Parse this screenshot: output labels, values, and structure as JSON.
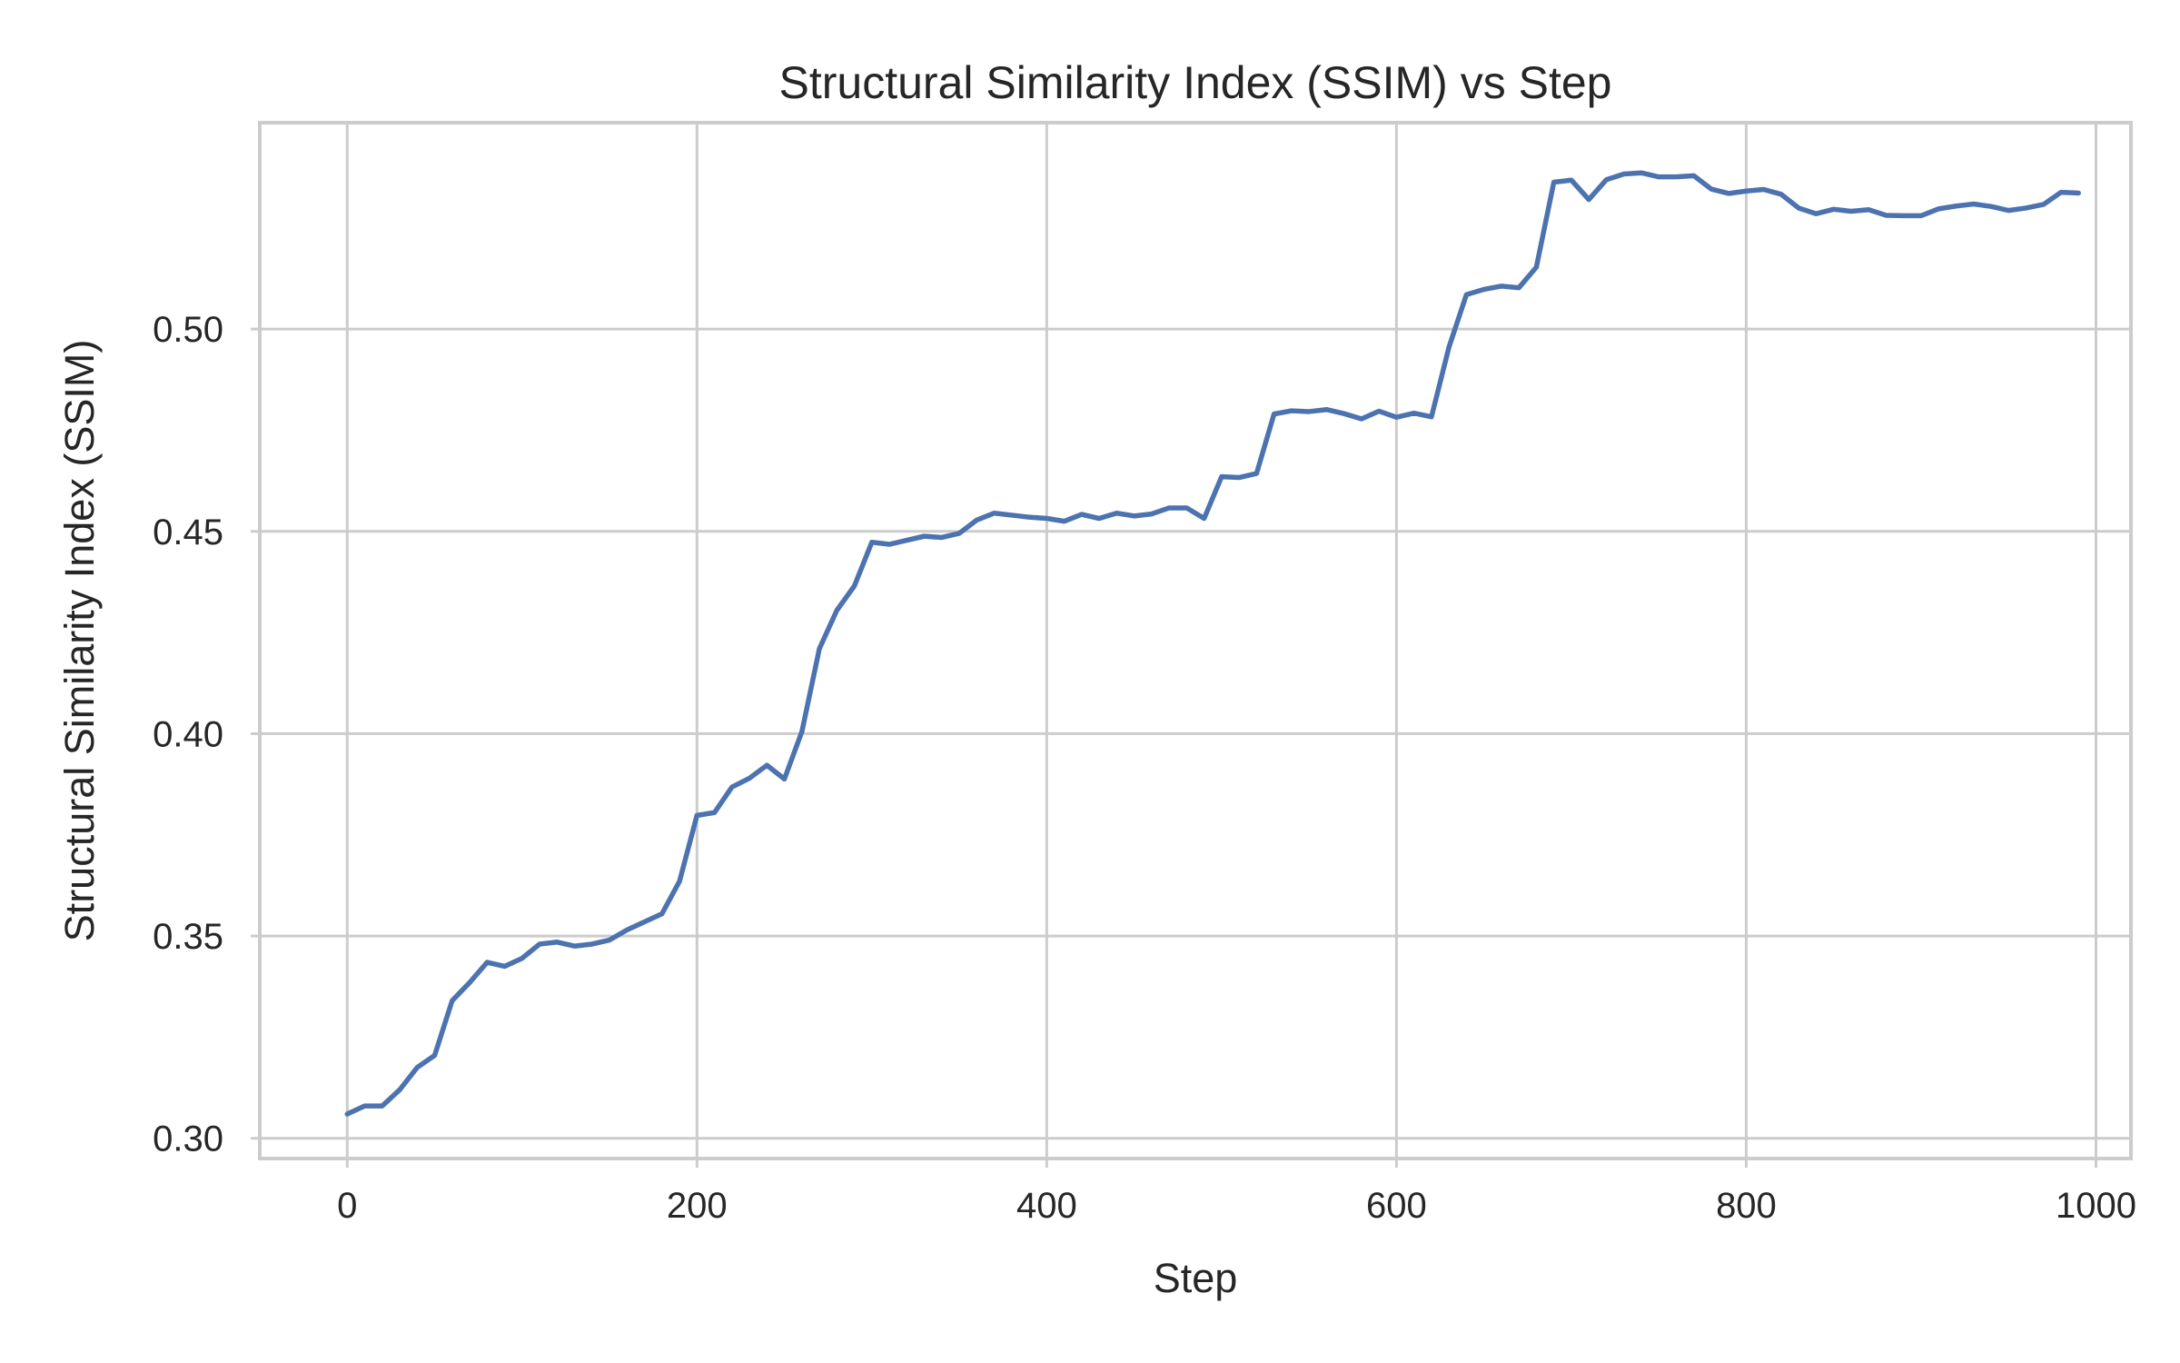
{
  "chart_data": {
    "type": "line",
    "title": "Structural Similarity Index (SSIM) vs Step",
    "xlabel": "Step",
    "ylabel": "Structural Similarity Index (SSIM)",
    "xlim": [
      -50,
      1020
    ],
    "ylim": [
      0.295,
      0.551
    ],
    "xticks": [
      0,
      200,
      400,
      600,
      800,
      1000
    ],
    "xtick_labels": [
      "0",
      "200",
      "400",
      "600",
      "800",
      "1000"
    ],
    "yticks": [
      0.3,
      0.35,
      0.4,
      0.45,
      0.5
    ],
    "ytick_labels": [
      "0.30",
      "0.35",
      "0.40",
      "0.45",
      "0.50"
    ],
    "grid": true,
    "colors": {
      "line": "#4c72b0",
      "grid": "#cccccc",
      "text": "#262626"
    },
    "series": [
      {
        "x": [
          0,
          10,
          20,
          30,
          40,
          50,
          60,
          70,
          80,
          90,
          100,
          110,
          120,
          130,
          140,
          150,
          160,
          170,
          180,
          190,
          200,
          210,
          220,
          230,
          240,
          250,
          260,
          270,
          280,
          290,
          300,
          310,
          320,
          330,
          340,
          350,
          360,
          370,
          380,
          390,
          400,
          410,
          420,
          430,
          440,
          450,
          460,
          470,
          480,
          490,
          500,
          510,
          520,
          530,
          540,
          550,
          560,
          570,
          580,
          590,
          600,
          610,
          620,
          630,
          640,
          650,
          660,
          670,
          680,
          690,
          700,
          710,
          720,
          730,
          740,
          750,
          760,
          770,
          780,
          790,
          800,
          810,
          820,
          830,
          840,
          850,
          860,
          870,
          880,
          890,
          900,
          910,
          920,
          930,
          940,
          950,
          960,
          970,
          980,
          990
        ],
        "values": [
          0.306,
          0.308,
          0.308,
          0.312,
          0.3175,
          0.3205,
          0.334,
          0.3385,
          0.3435,
          0.3425,
          0.3445,
          0.348,
          0.3485,
          0.3475,
          0.348,
          0.349,
          0.3515,
          0.3535,
          0.3555,
          0.3635,
          0.3798,
          0.3805,
          0.3868,
          0.389,
          0.3922,
          0.3888,
          0.4005,
          0.421,
          0.4305,
          0.4365,
          0.4473,
          0.4468,
          0.4478,
          0.4488,
          0.4485,
          0.4495,
          0.4528,
          0.4545,
          0.454,
          0.4535,
          0.4532,
          0.4525,
          0.4542,
          0.4532,
          0.4545,
          0.4538,
          0.4543,
          0.4558,
          0.4558,
          0.4532,
          0.4635,
          0.4633,
          0.4643,
          0.479,
          0.4798,
          0.4796,
          0.4801,
          0.4791,
          0.4778,
          0.4797,
          0.4782,
          0.4792,
          0.4783,
          0.4955,
          0.5085,
          0.5098,
          0.5106,
          0.5102,
          0.5153,
          0.5363,
          0.5368,
          0.532,
          0.5369,
          0.5383,
          0.5386,
          0.5376,
          0.5376,
          0.5379,
          0.5346,
          0.5335,
          0.5341,
          0.5345,
          0.5333,
          0.5299,
          0.5285,
          0.5296,
          0.5291,
          0.5295,
          0.5281,
          0.528,
          0.528,
          0.5297,
          0.5304,
          0.5309,
          0.5303,
          0.5293,
          0.5299,
          0.5308,
          0.5338,
          0.5336
        ]
      }
    ]
  }
}
